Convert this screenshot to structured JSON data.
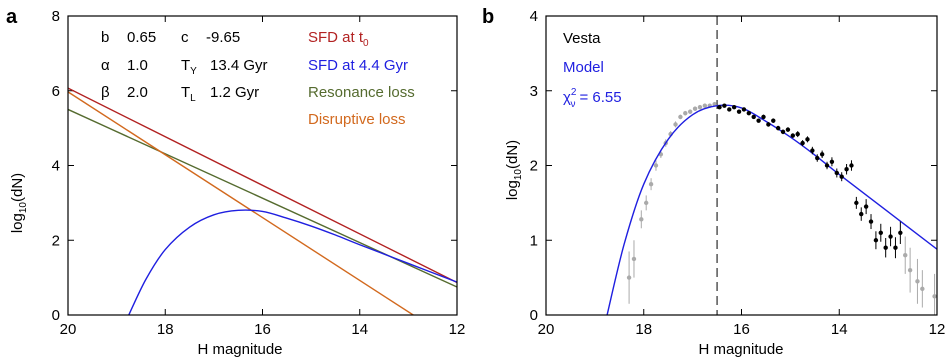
{
  "chart_data": [
    {
      "panel_label": "a",
      "type": "line",
      "xlabel": "H magnitude",
      "ylabel_main": "log",
      "ylabel_sub": "10",
      "ylabel_tail": "(dN)",
      "xlim": [
        20,
        12
      ],
      "ylim": [
        0,
        8
      ],
      "xticks": [
        20,
        18,
        16,
        14,
        12
      ],
      "yticks": [
        0,
        2,
        4,
        6,
        8
      ],
      "params": [
        {
          "symbol": "b",
          "value": "0.65"
        },
        {
          "symbol": "c",
          "value": "-9.65"
        },
        {
          "symbol": "α",
          "value": "1.0"
        },
        {
          "symbol": "T",
          "sub": "Y",
          "value": "13.4 Gyr"
        },
        {
          "symbol": "β",
          "value": "2.0"
        },
        {
          "symbol": "T",
          "sub": "L",
          "value": "1.2 Gyr"
        }
      ],
      "legend": [
        {
          "text": "SFD at t",
          "sub": "0",
          "color": "#b22222"
        },
        {
          "text": "SFD at 4.4 Gyr",
          "sub": "",
          "color": "#1f1fe0"
        },
        {
          "text": "Resonance loss",
          "sub": "",
          "color": "#556b2f"
        },
        {
          "text": "Disruptive loss",
          "sub": "",
          "color": "#d2691e"
        }
      ],
      "series": [
        {
          "name": "SFD at t0",
          "color": "#b22222",
          "x": [
            20,
            12
          ],
          "y": [
            6.07,
            0.87
          ]
        },
        {
          "name": "Resonance loss",
          "color": "#556b2f",
          "x": [
            20,
            12
          ],
          "y": [
            5.5,
            0.75
          ]
        },
        {
          "name": "Disruptive loss",
          "color": "#d2691e",
          "x": [
            20,
            12.9
          ],
          "y": [
            5.97,
            0
          ]
        },
        {
          "name": "SFD at 4.4 Gyr",
          "color": "#1f1fe0",
          "x": [
            18.75,
            18.4,
            18.0,
            17.5,
            17.0,
            16.5,
            16.0,
            15.5,
            15.0,
            14.5,
            14.0,
            13.0,
            12.0
          ],
          "y": [
            0,
            0.95,
            1.75,
            2.35,
            2.68,
            2.8,
            2.77,
            2.59,
            2.38,
            2.14,
            1.88,
            1.38,
            0.88
          ]
        }
      ]
    },
    {
      "panel_label": "b",
      "type": "scatter",
      "xlabel": "H magnitude",
      "ylabel_main": "log",
      "ylabel_sub": "10",
      "ylabel_tail": "(dN)",
      "xlim": [
        20,
        12
      ],
      "ylim": [
        0,
        4
      ],
      "xticks": [
        20,
        18,
        16,
        14,
        12
      ],
      "yticks": [
        0,
        1,
        2,
        3,
        4
      ],
      "vline_x": 16.5,
      "label_vesta": "Vesta",
      "label_model": "Model",
      "chi_label_symbol": "χ",
      "chi_label_sup": "2",
      "chi_label_sub": "ν",
      "chi_label_value": "= 6.55",
      "model_curve": {
        "color": "#1f1fe0",
        "x": [
          18.75,
          18.4,
          18.0,
          17.5,
          17.0,
          16.5,
          16.0,
          15.5,
          15.0,
          14.5,
          14.0,
          13.0,
          12.0
        ],
        "y": [
          0,
          0.95,
          1.75,
          2.35,
          2.68,
          2.8,
          2.77,
          2.59,
          2.38,
          2.14,
          1.88,
          1.38,
          0.88
        ]
      },
      "points_gray": {
        "color": "#aaaaaa",
        "x": [
          18.3,
          18.2,
          18.05,
          17.95,
          17.85,
          17.75,
          17.65,
          17.55,
          17.45,
          17.35,
          17.25,
          17.15,
          17.05,
          16.95,
          16.85,
          16.75,
          16.65,
          16.55,
          12.65,
          12.55,
          12.4,
          12.3,
          12.05
        ],
        "y": [
          0.5,
          0.75,
          1.28,
          1.5,
          1.75,
          2.0,
          2.15,
          2.3,
          2.42,
          2.55,
          2.65,
          2.7,
          2.72,
          2.76,
          2.78,
          2.8,
          2.8,
          2.82,
          0.8,
          0.6,
          0.45,
          0.35,
          0.25
        ],
        "err": [
          0.35,
          0.25,
          0.12,
          0.1,
          0.08,
          0.07,
          0.05,
          0.05,
          0.04,
          0.04,
          0.03,
          0.03,
          0.03,
          0.03,
          0.03,
          0.03,
          0.03,
          0.03,
          0.25,
          0.3,
          0.3,
          0.25,
          0.3
        ]
      },
      "points_black": {
        "color": "#000000",
        "x": [
          16.45,
          16.35,
          16.25,
          16.15,
          16.05,
          15.95,
          15.85,
          15.75,
          15.65,
          15.55,
          15.45,
          15.35,
          15.25,
          15.15,
          15.05,
          14.95,
          14.85,
          14.75,
          14.65,
          14.55,
          14.45,
          14.35,
          14.25,
          14.15,
          14.05,
          13.95,
          13.85,
          13.75,
          13.65,
          13.55,
          13.45,
          13.35,
          13.25,
          13.15,
          13.05,
          12.95,
          12.85,
          12.75
        ],
        "y": [
          2.78,
          2.8,
          2.75,
          2.78,
          2.72,
          2.75,
          2.7,
          2.65,
          2.6,
          2.65,
          2.55,
          2.6,
          2.5,
          2.45,
          2.48,
          2.4,
          2.42,
          2.3,
          2.35,
          2.2,
          2.1,
          2.15,
          2.0,
          2.05,
          1.9,
          1.85,
          1.95,
          2.0,
          1.5,
          1.35,
          1.45,
          1.25,
          1.0,
          1.1,
          0.9,
          1.05,
          0.9,
          1.1
        ],
        "err": [
          0.02,
          0.02,
          0.02,
          0.02,
          0.02,
          0.02,
          0.02,
          0.02,
          0.02,
          0.03,
          0.03,
          0.03,
          0.03,
          0.03,
          0.03,
          0.03,
          0.04,
          0.04,
          0.04,
          0.05,
          0.05,
          0.05,
          0.05,
          0.06,
          0.06,
          0.06,
          0.07,
          0.07,
          0.08,
          0.09,
          0.1,
          0.1,
          0.12,
          0.12,
          0.13,
          0.13,
          0.14,
          0.15
        ]
      }
    }
  ]
}
